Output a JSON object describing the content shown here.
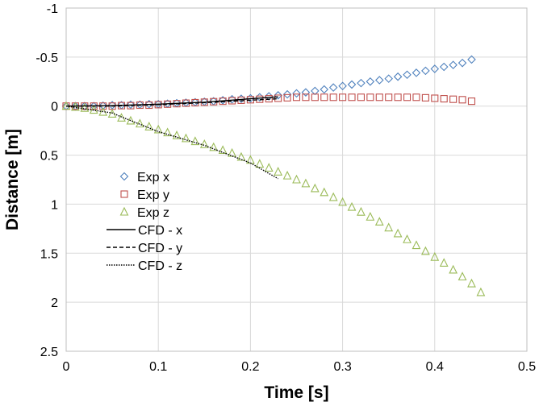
{
  "chart_data": {
    "type": "scatter",
    "xlabel": "Time [s]",
    "ylabel": "Distance [m]",
    "xlim": [
      0,
      0.5
    ],
    "ylim": [
      -1,
      2.5
    ],
    "y_inverted": true,
    "grid": true,
    "legend_position": "left",
    "x_ticks": [
      "0",
      "0.1",
      "0.2",
      "0.3",
      "0.4",
      "0.5"
    ],
    "y_ticks": [
      "-1",
      "-0.5",
      "0",
      "0.5",
      "1",
      "1.5",
      "2",
      "2.5"
    ],
    "series": [
      {
        "name": "Exp x",
        "marker": "diamond",
        "color": "#4f81bd",
        "x": [
          0,
          0.01,
          0.02,
          0.03,
          0.04,
          0.05,
          0.06,
          0.07,
          0.08,
          0.09,
          0.1,
          0.11,
          0.12,
          0.13,
          0.14,
          0.15,
          0.16,
          0.17,
          0.18,
          0.19,
          0.2,
          0.21,
          0.22,
          0.23,
          0.24,
          0.25,
          0.26,
          0.27,
          0.28,
          0.29,
          0.3,
          0.31,
          0.32,
          0.33,
          0.34,
          0.35,
          0.36,
          0.37,
          0.38,
          0.39,
          0.4,
          0.41,
          0.42,
          0.43,
          0.44
        ],
        "y": [
          0,
          0,
          0,
          0,
          -0.005,
          -0.01,
          -0.01,
          -0.015,
          -0.015,
          -0.02,
          -0.02,
          -0.025,
          -0.03,
          -0.035,
          -0.04,
          -0.045,
          -0.05,
          -0.06,
          -0.07,
          -0.075,
          -0.08,
          -0.09,
          -0.1,
          -0.11,
          -0.12,
          -0.13,
          -0.14,
          -0.155,
          -0.17,
          -0.19,
          -0.205,
          -0.22,
          -0.235,
          -0.25,
          -0.265,
          -0.28,
          -0.3,
          -0.32,
          -0.34,
          -0.36,
          -0.38,
          -0.4,
          -0.42,
          -0.44,
          -0.475
        ]
      },
      {
        "name": "Exp y",
        "marker": "square",
        "color": "#c0504d",
        "x": [
          0,
          0.01,
          0.02,
          0.03,
          0.04,
          0.05,
          0.06,
          0.07,
          0.08,
          0.09,
          0.1,
          0.11,
          0.12,
          0.13,
          0.14,
          0.15,
          0.16,
          0.17,
          0.18,
          0.19,
          0.2,
          0.21,
          0.22,
          0.23,
          0.24,
          0.25,
          0.26,
          0.27,
          0.28,
          0.29,
          0.3,
          0.31,
          0.32,
          0.33,
          0.34,
          0.35,
          0.36,
          0.37,
          0.38,
          0.39,
          0.4,
          0.41,
          0.42,
          0.43,
          0.44
        ],
        "y": [
          0,
          0,
          0,
          0,
          0,
          0,
          -0.005,
          -0.005,
          -0.01,
          -0.01,
          -0.015,
          -0.02,
          -0.025,
          -0.03,
          -0.035,
          -0.04,
          -0.045,
          -0.05,
          -0.055,
          -0.06,
          -0.065,
          -0.07,
          -0.075,
          -0.08,
          -0.085,
          -0.09,
          -0.09,
          -0.09,
          -0.09,
          -0.09,
          -0.09,
          -0.09,
          -0.09,
          -0.09,
          -0.09,
          -0.09,
          -0.09,
          -0.09,
          -0.09,
          -0.085,
          -0.08,
          -0.075,
          -0.07,
          -0.065,
          -0.05
        ]
      },
      {
        "name": "Exp z",
        "marker": "triangle",
        "color": "#9bbb59",
        "x": [
          0,
          0.01,
          0.02,
          0.03,
          0.04,
          0.05,
          0.06,
          0.07,
          0.08,
          0.09,
          0.1,
          0.11,
          0.12,
          0.13,
          0.14,
          0.15,
          0.16,
          0.17,
          0.18,
          0.19,
          0.2,
          0.21,
          0.22,
          0.23,
          0.24,
          0.25,
          0.26,
          0.27,
          0.28,
          0.29,
          0.3,
          0.31,
          0.32,
          0.33,
          0.34,
          0.35,
          0.36,
          0.37,
          0.38,
          0.39,
          0.4,
          0.41,
          0.42,
          0.43,
          0.44,
          0.45
        ],
        "y": [
          0,
          0.01,
          0.02,
          0.04,
          0.06,
          0.08,
          0.12,
          0.15,
          0.18,
          0.21,
          0.24,
          0.27,
          0.3,
          0.33,
          0.36,
          0.39,
          0.42,
          0.45,
          0.48,
          0.52,
          0.55,
          0.59,
          0.63,
          0.67,
          0.71,
          0.75,
          0.79,
          0.84,
          0.88,
          0.93,
          0.98,
          1.03,
          1.08,
          1.13,
          1.18,
          1.24,
          1.3,
          1.36,
          1.42,
          1.48,
          1.54,
          1.6,
          1.67,
          1.74,
          1.81,
          1.9
        ]
      },
      {
        "name": "CFD - x",
        "line": "solid",
        "color": "#000000",
        "x": [
          0,
          0.05,
          0.1,
          0.15,
          0.2,
          0.23
        ],
        "y": [
          0,
          -0.005,
          -0.02,
          -0.04,
          -0.075,
          -0.095
        ]
      },
      {
        "name": "CFD - y",
        "line": "dashed",
        "color": "#000000",
        "x": [
          0,
          0.05,
          0.1,
          0.15,
          0.2,
          0.23
        ],
        "y": [
          0,
          0,
          -0.015,
          -0.035,
          -0.06,
          -0.075
        ]
      },
      {
        "name": "CFD - z",
        "line": "dotted",
        "color": "#000000",
        "x": [
          0,
          0.05,
          0.06,
          0.1,
          0.15,
          0.2,
          0.23
        ],
        "y": [
          0,
          0.07,
          0.11,
          0.26,
          0.4,
          0.58,
          0.74
        ]
      }
    ]
  }
}
